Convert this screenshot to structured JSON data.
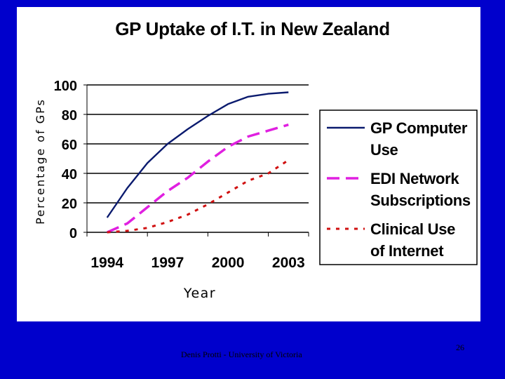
{
  "slide": {
    "footer_author": "Denis Protti - University of Victoria",
    "page_number": "26",
    "background_color": "#0000cc",
    "panel_color": "#ffffff"
  },
  "chart_data": {
    "type": "line",
    "title": "GP Uptake of I.T. in New Zealand",
    "xlabel": "Year",
    "ylabel": "Percentage of GPs",
    "x": [
      1994,
      1995,
      1996,
      1997,
      1998,
      1999,
      2000,
      2001,
      2002,
      2003
    ],
    "x_tick_labels": [
      "1994",
      "1997",
      "2000",
      "2003"
    ],
    "x_tick_values": [
      1994,
      1997,
      2000,
      2003
    ],
    "y_tick_labels": [
      "0",
      "20",
      "40",
      "60",
      "80",
      "100"
    ],
    "ylim": [
      0,
      100
    ],
    "xlim": [
      1993,
      2004
    ],
    "grid": "horizontal",
    "legend_position": "right",
    "series": [
      {
        "name": "GP Computer Use",
        "legend_lines": [
          "GP Computer",
          "Use"
        ],
        "color": "#0a1a6e",
        "style": "solid",
        "values": [
          10,
          30,
          47,
          60,
          70,
          79,
          87,
          92,
          94,
          95
        ]
      },
      {
        "name": "EDI Network Subscriptions",
        "legend_lines": [
          "EDI Network",
          "Subscriptions"
        ],
        "color": "#e020e0",
        "style": "dashed",
        "values": [
          0,
          6,
          17,
          28,
          37,
          48,
          58,
          65,
          69,
          73
        ]
      },
      {
        "name": "Clinical Use of Internet",
        "legend_lines": [
          "Clinical  Use",
          "of Internet"
        ],
        "color": "#d01010",
        "style": "dotted",
        "values": [
          0,
          1,
          3,
          7,
          12,
          19,
          27,
          35,
          40,
          49
        ]
      }
    ]
  }
}
